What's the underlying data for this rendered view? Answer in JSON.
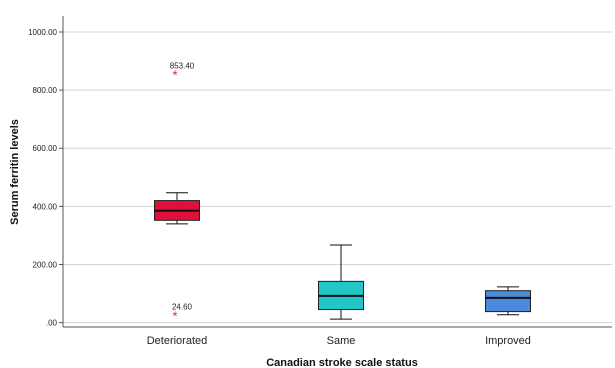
{
  "chart_data": {
    "type": "boxplot",
    "xlabel": "Canadian stroke scale status",
    "ylabel": "Serum ferritin levels",
    "ylim": [
      -15,
      1055
    ],
    "yticks": [
      0,
      200,
      400,
      600,
      800,
      1000
    ],
    "ytick_labels": [
      ".00",
      "200.00",
      "400.00",
      "600.00",
      "800.00",
      "1000.00"
    ],
    "grid": "horizontal",
    "categories": [
      "Deteriorated",
      "Same",
      "Improved"
    ],
    "boxes": [
      {
        "category": "Deteriorated",
        "color": "#e0103b",
        "whisker_low": 340,
        "q1": 352,
        "median": 385,
        "q3": 420,
        "whisker_high": 447,
        "outliers": [
          {
            "value": 853.4,
            "label": "853.40"
          },
          {
            "value": 24.6,
            "label": "24.60"
          }
        ]
      },
      {
        "category": "Same",
        "color": "#21c7c7",
        "whisker_low": 12,
        "q1": 45,
        "median": 92,
        "q3": 142,
        "whisker_high": 267,
        "outliers": []
      },
      {
        "category": "Improved",
        "color": "#4a89dc",
        "whisker_low": 27,
        "q1": 38,
        "median": 85,
        "q3": 110,
        "whisker_high": 123,
        "outliers": []
      }
    ],
    "outlier_color": "#e0203b"
  }
}
